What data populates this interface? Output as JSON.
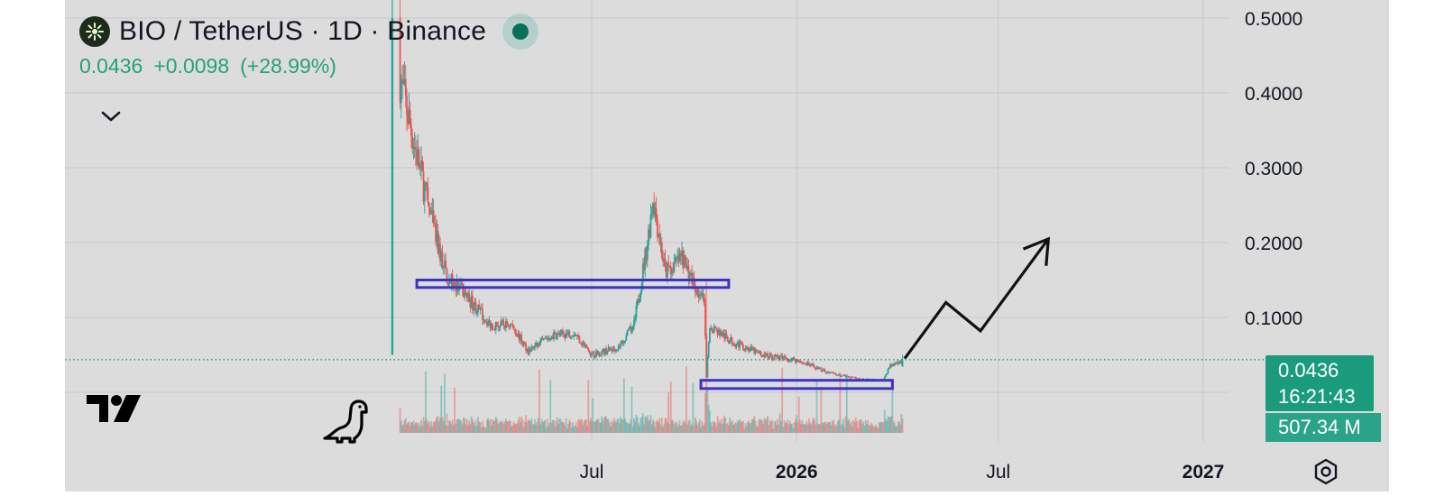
{
  "legend": {
    "symbol": "BIO / TetherUS · 1D · Binance",
    "last_price": "0.0436",
    "change": "+0.0098",
    "change_pct": "(+28.99%)"
  },
  "badges": {
    "price": "0.0436",
    "countdown": "16:21:43",
    "volume": "507.34 M"
  },
  "icons": {
    "collapse": "chevron-down-icon",
    "logo": "tradingview-logo-icon",
    "dino": "dinosaur-icon",
    "settings": "gear-icon"
  },
  "colors": {
    "up": "#26a69a",
    "down": "#ef5350",
    "zone_border": "#3d33c7",
    "arrow": "#111111",
    "price_line": "#1a9c7c"
  },
  "chart_data": {
    "type": "candlestick",
    "title": "BIO / TetherUS · 1D · Binance",
    "xlabel": "",
    "ylabel": "",
    "y_ticks": [
      "0.5000",
      "0.4000",
      "0.3000",
      "0.2000",
      "0.1000"
    ],
    "y_tick_values": [
      0.5,
      0.4,
      0.3,
      0.2,
      0.1
    ],
    "ylim": [
      0.0,
      0.53
    ],
    "x_ticks": [
      "Jul",
      "2026",
      "Jul",
      "2027"
    ],
    "x_tick_dates": [
      "2025-07-01",
      "2026-01-01",
      "2026-07-01",
      "2027-01-01"
    ],
    "xlim": [
      "2024-08-15",
      "2027-03-10"
    ],
    "grid": true,
    "legend": "none",
    "current_price": 0.0436,
    "price_path": [
      {
        "date": "2025-01-03",
        "open": 0.05,
        "close": 0.5,
        "high": 0.55,
        "low": 0.05
      },
      {
        "date": "2025-01-10",
        "value": 0.42
      },
      {
        "date": "2025-01-20",
        "value": 0.35
      },
      {
        "date": "2025-02-01",
        "value": 0.27
      },
      {
        "date": "2025-02-12",
        "value": 0.2
      },
      {
        "date": "2025-02-22",
        "value": 0.15
      },
      {
        "date": "2025-03-10",
        "value": 0.13
      },
      {
        "date": "2025-04-01",
        "value": 0.09
      },
      {
        "date": "2025-04-20",
        "value": 0.09
      },
      {
        "date": "2025-05-05",
        "value": 0.055
      },
      {
        "date": "2025-05-25",
        "value": 0.075
      },
      {
        "date": "2025-06-15",
        "value": 0.08
      },
      {
        "date": "2025-07-01",
        "value": 0.05
      },
      {
        "date": "2025-07-25",
        "value": 0.06
      },
      {
        "date": "2025-08-08",
        "value": 0.09
      },
      {
        "date": "2025-08-20",
        "value": 0.2
      },
      {
        "date": "2025-08-25",
        "value": 0.26
      },
      {
        "date": "2025-09-05",
        "value": 0.16
      },
      {
        "date": "2025-09-20",
        "value": 0.18
      },
      {
        "date": "2025-10-02",
        "value": 0.14
      },
      {
        "date": "2025-10-10",
        "value": 0.12
      },
      {
        "date": "2025-10-12",
        "value": 0.02
      },
      {
        "date": "2025-10-15",
        "value": 0.09
      },
      {
        "date": "2025-11-01",
        "value": 0.07
      },
      {
        "date": "2025-12-01",
        "value": 0.05
      },
      {
        "date": "2026-01-01",
        "value": 0.043
      },
      {
        "date": "2026-02-01",
        "value": 0.025
      },
      {
        "date": "2026-03-01",
        "value": 0.017
      },
      {
        "date": "2026-03-20",
        "value": 0.016
      },
      {
        "date": "2026-03-25",
        "value": 0.034
      },
      {
        "date": "2026-04-06",
        "value": 0.0436
      }
    ],
    "zones": [
      {
        "from": "2025-01-25",
        "to": "2025-11-01",
        "low": 0.14,
        "high": 0.15
      },
      {
        "from": "2025-10-07",
        "to": "2026-03-28",
        "low": 0.005,
        "high": 0.016
      }
    ],
    "projection": [
      {
        "date": "2026-04-08",
        "value": 0.045
      },
      {
        "date": "2026-05-15",
        "value": 0.12
      },
      {
        "date": "2026-06-15",
        "value": 0.082
      },
      {
        "date": "2026-08-15",
        "value": 0.205
      }
    ]
  }
}
